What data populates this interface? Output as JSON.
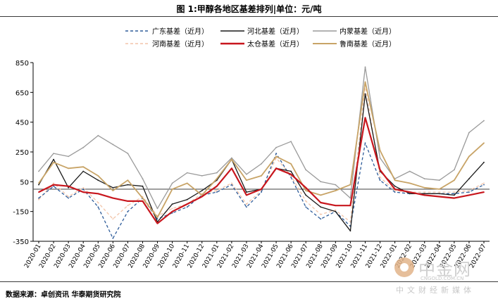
{
  "title": "图 1:甲醇各地区基差排列|单位：元/吨",
  "source": "数据来源：卓创资讯 华泰期货研究院",
  "watermark": {
    "brand": "中金网",
    "url": "CNGOLD.COM.CN",
    "sub": "中文财经新媒体"
  },
  "chart_data": {
    "type": "line",
    "title": "图 1:甲醇各地区基差排列|单位：元/吨",
    "ylim": [
      -350,
      850
    ],
    "yticks": [
      -350,
      -150,
      50,
      250,
      450,
      650,
      850
    ],
    "x_categories": [
      "2020-01",
      "2020-02",
      "2020-03",
      "2020-04",
      "2020-05",
      "2020-06",
      "2020-07",
      "2020-08",
      "2020-09",
      "2020-10",
      "2020-11",
      "2020-12",
      "2021-01",
      "2021-02",
      "2021-03",
      "2021-04",
      "2021-05",
      "2021-06",
      "2021-07",
      "2021-08",
      "2021-09",
      "2021-10",
      "2021-11",
      "2021-12",
      "2022-01",
      "2022-02",
      "2022-03",
      "2022-04",
      "2022-05",
      "2022-06",
      "2022-07"
    ],
    "x_ticklabels": [
      "2020-01",
      "2020-02",
      "2020-03",
      "2020-04",
      "2020-05",
      "2020-06",
      "2020-07",
      "2020-08",
      "2020-09",
      "2020-10",
      "2020-11",
      "2020-12",
      "2021-01",
      "2021-02",
      "2021-03",
      "2021-04",
      "2021-05",
      "2021-06",
      "2021-07",
      "2021-08",
      "2021-09",
      "2021-10",
      "2021-11",
      "2021-12",
      "2022-01",
      "2022-02",
      "2022-03",
      "2022-04",
      "2022-05",
      "2022-06",
      "2022-07"
    ],
    "reference_line": 0,
    "grid": false,
    "legend": "top",
    "series": [
      {
        "name": "广东基差（近月）",
        "color": "#2e5c9a",
        "style": "dashed",
        "values": [
          -60,
          20,
          -60,
          0,
          -120,
          -330,
          -150,
          -60,
          -200,
          -160,
          -120,
          -40,
          -20,
          30,
          -120,
          -20,
          240,
          80,
          -120,
          -200,
          -150,
          -250,
          310,
          60,
          -20,
          -30,
          -30,
          -30,
          -30,
          -20,
          30
        ]
      },
      {
        "name": "河北基差（近月）",
        "color": "#1a1a1a",
        "style": "solid",
        "values": [
          30,
          200,
          10,
          120,
          60,
          10,
          30,
          20,
          -220,
          -100,
          -70,
          -10,
          60,
          200,
          -20,
          0,
          140,
          120,
          -40,
          -120,
          -150,
          -280,
          640,
          120,
          20,
          -30,
          -30,
          -30,
          -40,
          70,
          180
        ]
      },
      {
        "name": "内蒙基差（近月）",
        "color": "#9a9a9a",
        "style": "solid",
        "values": [
          120,
          240,
          220,
          280,
          360,
          300,
          240,
          70,
          -130,
          40,
          110,
          90,
          110,
          210,
          100,
          170,
          280,
          320,
          130,
          50,
          30,
          -60,
          820,
          210,
          70,
          120,
          70,
          60,
          130,
          380,
          460
        ]
      },
      {
        "name": "河南基差（近月）",
        "color": "#f2c4a8",
        "style": "dashed",
        "values": [
          -70,
          40,
          -50,
          10,
          -90,
          -200,
          -110,
          -50,
          -180,
          -130,
          -100,
          -30,
          -10,
          40,
          -100,
          -10,
          210,
          90,
          -80,
          -170,
          -140,
          -220,
          700,
          80,
          -10,
          -20,
          -20,
          -20,
          -20,
          -10,
          40
        ]
      },
      {
        "name": "太仓基差（近月）",
        "color": "#c8161d",
        "style": "solid",
        "values": [
          -20,
          30,
          20,
          -20,
          -30,
          -60,
          -80,
          -80,
          -230,
          -150,
          -100,
          -50,
          20,
          140,
          -40,
          0,
          140,
          100,
          10,
          -90,
          -110,
          -110,
          480,
          130,
          0,
          -20,
          -40,
          -50,
          -60,
          -40,
          -20
        ]
      },
      {
        "name": "鲁南基差（近月）",
        "color": "#c8a467",
        "style": "solid",
        "values": [
          40,
          180,
          140,
          150,
          90,
          -10,
          60,
          -60,
          -190,
          0,
          40,
          -40,
          70,
          200,
          60,
          90,
          220,
          170,
          -10,
          -40,
          -10,
          30,
          720,
          260,
          60,
          40,
          10,
          0,
          60,
          220,
          310
        ]
      }
    ]
  }
}
